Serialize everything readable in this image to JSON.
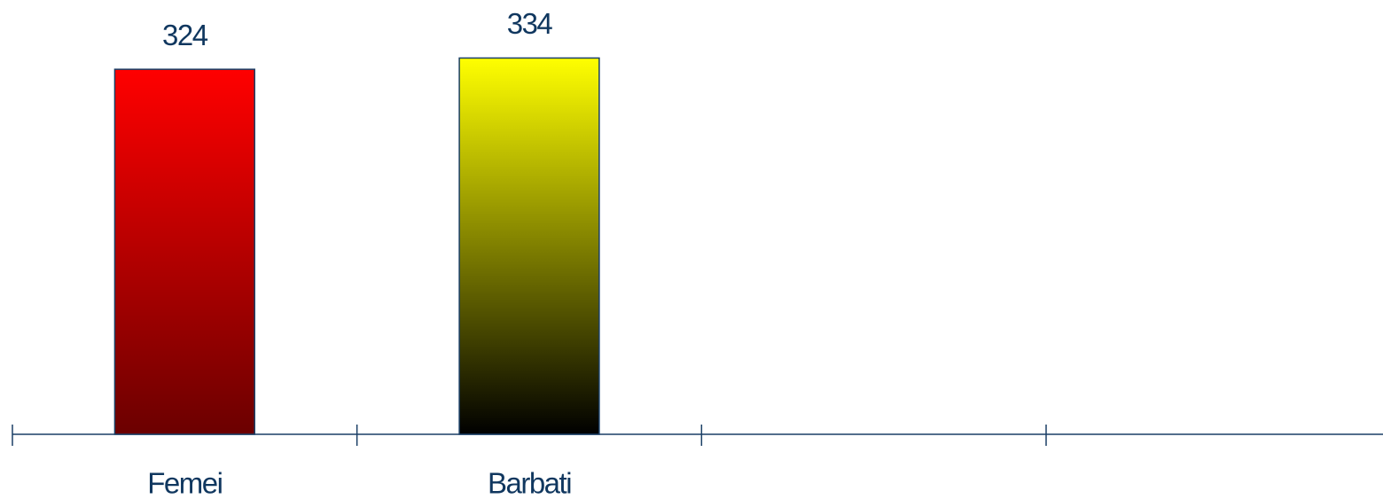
{
  "chart_data": {
    "type": "bar",
    "categories": [
      "Femei",
      "Barbati",
      null,
      null
    ],
    "values": [
      324,
      334,
      null,
      null
    ],
    "colors": [
      "#ff0000",
      "#ffff00",
      null,
      null
    ],
    "ylim": [
      0,
      380
    ]
  }
}
